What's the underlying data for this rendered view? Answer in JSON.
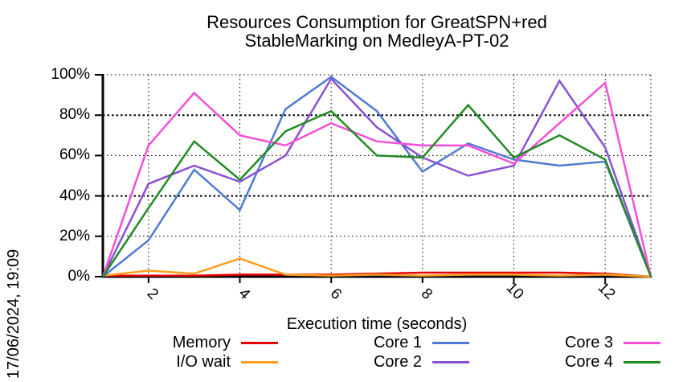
{
  "chart_data": {
    "type": "line",
    "title": "Resources Consumption for GreatSPN+red StableMarking on MedleyA-PT-02",
    "title_line1": "Resources Consumption for GreatSPN+red",
    "title_line2": "StableMarking on MedleyA-PT-02",
    "xlabel": "Execution time (seconds)",
    "ylabel": "",
    "timestamp_label": "17/06/2024, 19:09",
    "xlim": [
      1,
      13
    ],
    "ylim": [
      0,
      100
    ],
    "grid": true,
    "legend_position": "bottom",
    "background": "#ffffff",
    "axis_color": "#000000",
    "x_ticks": [
      {
        "label": "2",
        "value": 2
      },
      {
        "label": "4",
        "value": 4
      },
      {
        "label": "6",
        "value": 6
      },
      {
        "label": "8",
        "value": 8
      },
      {
        "label": "10",
        "value": 10
      },
      {
        "label": "12",
        "value": 12
      }
    ],
    "y_ticks": [
      {
        "label": "0%",
        "value": 0
      },
      {
        "label": "20%",
        "value": 20
      },
      {
        "label": "40%",
        "value": 40
      },
      {
        "label": "60%",
        "value": 60
      },
      {
        "label": "80%",
        "value": 80
      },
      {
        "label": "100%",
        "value": 100
      }
    ],
    "x": [
      1,
      2,
      3,
      4,
      5,
      6,
      7,
      8,
      9,
      10,
      11,
      12,
      13
    ],
    "series": [
      {
        "name": "Memory",
        "color": "#e60000",
        "values": [
          0.5,
          0.5,
          0.5,
          1,
          1,
          1,
          1.5,
          2,
          2,
          2,
          2,
          1.5,
          0
        ]
      },
      {
        "name": "I/O wait",
        "color": "#ffa020",
        "values": [
          0.5,
          3,
          1.5,
          9,
          1,
          0.5,
          1,
          0.5,
          1,
          1,
          0.5,
          1,
          0
        ]
      },
      {
        "name": "Core 1",
        "color": "#4f7ad2",
        "values": [
          0,
          18,
          53,
          33,
          83,
          99,
          82,
          52,
          66,
          58,
          55,
          57,
          0
        ]
      },
      {
        "name": "Core 2",
        "color": "#8a51d4",
        "values": [
          0,
          46,
          55,
          47,
          60,
          98,
          74,
          59,
          50,
          55,
          97,
          64,
          0
        ]
      },
      {
        "name": "Core 3",
        "color": "#f44fd7",
        "values": [
          0,
          65,
          91,
          70,
          65,
          76,
          67,
          65,
          65,
          56,
          76,
          96,
          0
        ]
      },
      {
        "name": "Core 4",
        "color": "#228b22",
        "values": [
          0,
          34,
          67,
          48,
          72,
          82,
          60,
          59,
          85,
          59,
          70,
          58,
          0
        ]
      }
    ]
  }
}
